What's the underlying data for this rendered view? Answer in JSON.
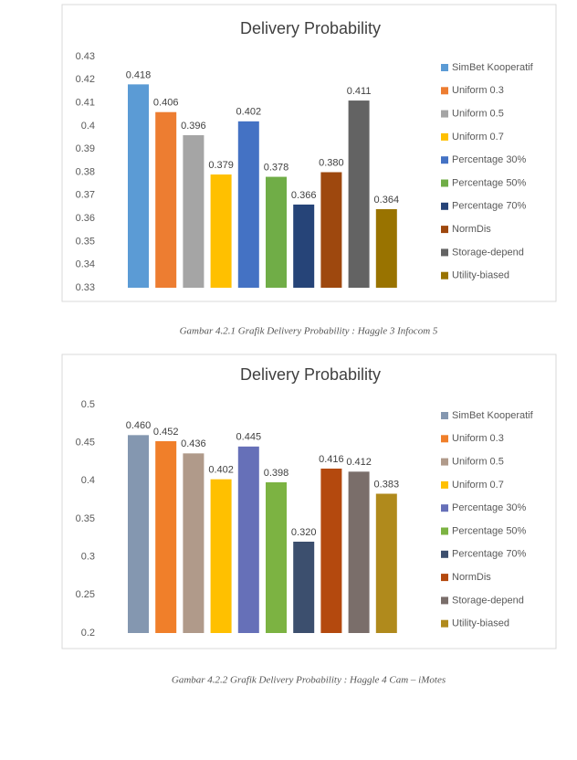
{
  "chart_data": [
    {
      "type": "bar",
      "title": "Delivery Probability",
      "caption": "Gambar 4.2.1 Grafik Delivery Probability : Haggle 3 Infocom 5",
      "ylim": [
        0.33,
        0.43
      ],
      "yticks": [
        0.33,
        0.34,
        0.35,
        0.36,
        0.37,
        0.38,
        0.39,
        0.4,
        0.41,
        0.42,
        0.43
      ],
      "grid": false,
      "legend": "right",
      "series": [
        {
          "name": "SimBet Kooperatif",
          "color": "#5b9bd5",
          "values": [
            0.418
          ]
        },
        {
          "name": "Uniform 0.3",
          "color": "#ed7d31",
          "values": [
            0.406
          ]
        },
        {
          "name": "Uniform 0.5",
          "color": "#a5a5a5",
          "values": [
            0.396
          ]
        },
        {
          "name": "Uniform 0.7",
          "color": "#ffc000",
          "values": [
            0.379
          ]
        },
        {
          "name": "Percentage 30%",
          "color": "#4472c4",
          "values": [
            0.402
          ]
        },
        {
          "name": "Percentage 50%",
          "color": "#70ad47",
          "values": [
            0.378
          ]
        },
        {
          "name": "Percentage 70%",
          "color": "#264478",
          "values": [
            0.366
          ]
        },
        {
          "name": "NormDis",
          "color": "#9e480e",
          "values": [
            0.38
          ],
          "value_labels": [
            "0.380"
          ]
        },
        {
          "name": "Storage-depend",
          "color": "#636363",
          "values": [
            0.411
          ]
        },
        {
          "name": "Utility-biased",
          "color": "#997300",
          "values": [
            0.364
          ]
        }
      ]
    },
    {
      "type": "bar",
      "title": "Delivery Probability",
      "caption": "Gambar 4.2.2 Grafik Delivery Probability : Haggle 4 Cam – iMotes",
      "ylim": [
        0.2,
        0.5
      ],
      "yticks": [
        0.2,
        0.25,
        0.3,
        0.35,
        0.4,
        0.45,
        0.5
      ],
      "grid": false,
      "legend": "right",
      "series": [
        {
          "name": "SimBet Kooperatif",
          "color": "#8497b0",
          "values": [
            0.46
          ],
          "value_labels": [
            "0.460"
          ]
        },
        {
          "name": "Uniform 0.3",
          "color": "#f07f2a",
          "values": [
            0.452
          ]
        },
        {
          "name": "Uniform 0.5",
          "color": "#b09a8a",
          "values": [
            0.436
          ]
        },
        {
          "name": "Uniform 0.7",
          "color": "#ffc000",
          "values": [
            0.402
          ]
        },
        {
          "name": "Percentage 30%",
          "color": "#6670b8",
          "values": [
            0.445
          ]
        },
        {
          "name": "Percentage 50%",
          "color": "#7cb342",
          "values": [
            0.398
          ]
        },
        {
          "name": "Percentage 70%",
          "color": "#3c4f6e",
          "values": [
            0.32
          ],
          "value_labels": [
            "0.320"
          ]
        },
        {
          "name": "NormDis",
          "color": "#b4490e",
          "values": [
            0.416
          ]
        },
        {
          "name": "Storage-depend",
          "color": "#7a6e6a",
          "values": [
            0.412
          ]
        },
        {
          "name": "Utility-biased",
          "color": "#b08a1c",
          "values": [
            0.383
          ]
        }
      ]
    }
  ]
}
